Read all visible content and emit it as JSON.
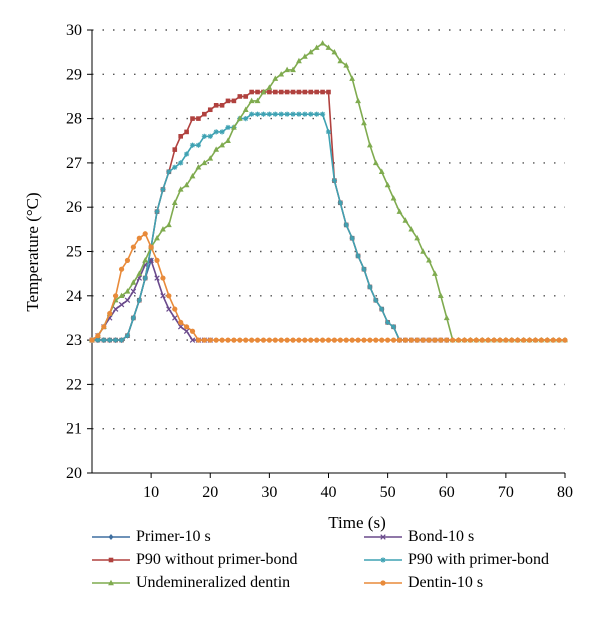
{
  "chart_data": {
    "type": "line",
    "title": "",
    "xlabel": "Time (s)",
    "ylabel": "Temperature (°C)",
    "xlim": [
      0,
      80
    ],
    "ylim": [
      20,
      30
    ],
    "xticks": [
      "10",
      "20",
      "30",
      "40",
      "50",
      "60",
      "70",
      "80"
    ],
    "yticks": [
      "20",
      "21",
      "22",
      "23",
      "24",
      "25",
      "26",
      "27",
      "28",
      "29",
      "30"
    ],
    "grid": "horizontal-dotted",
    "legend_position": "bottom",
    "series": [
      {
        "name": "Primer-10 s",
        "color": "#3f6fa0",
        "marker": "diamond",
        "points": [
          [
            0,
            23
          ],
          [
            1,
            23
          ],
          [
            2,
            23
          ],
          [
            3,
            23
          ],
          [
            4,
            23
          ],
          [
            5,
            23
          ],
          [
            6,
            23.1
          ],
          [
            7,
            23.5
          ],
          [
            8,
            23.9
          ],
          [
            9,
            24.4
          ],
          [
            10,
            24.8
          ]
        ]
      },
      {
        "name": "Bond-10 s",
        "color": "#6a4a8c",
        "marker": "x",
        "points": [
          [
            0,
            23
          ],
          [
            1,
            23.1
          ],
          [
            2,
            23.3
          ],
          [
            3,
            23.5
          ],
          [
            4,
            23.7
          ],
          [
            5,
            23.8
          ],
          [
            6,
            23.9
          ],
          [
            7,
            24.1
          ],
          [
            8,
            24.4
          ],
          [
            9,
            24.7
          ],
          [
            10,
            24.8
          ],
          [
            11,
            24.4
          ],
          [
            12,
            24
          ],
          [
            13,
            23.7
          ],
          [
            14,
            23.5
          ],
          [
            15,
            23.3
          ],
          [
            16,
            23.2
          ],
          [
            17,
            23
          ],
          [
            18,
            23
          ],
          [
            19,
            23
          ],
          [
            20,
            23
          ]
        ]
      },
      {
        "name": "P90 without primer-bond",
        "color": "#b0413e",
        "marker": "square",
        "points": [
          [
            0,
            23
          ],
          [
            1,
            23
          ],
          [
            2,
            23
          ],
          [
            3,
            23
          ],
          [
            4,
            23
          ],
          [
            5,
            23
          ],
          [
            6,
            23.1
          ],
          [
            7,
            23.5
          ],
          [
            8,
            23.9
          ],
          [
            9,
            24.4
          ],
          [
            10,
            25.1
          ],
          [
            11,
            25.9
          ],
          [
            12,
            26.4
          ],
          [
            13,
            26.8
          ],
          [
            14,
            27.3
          ],
          [
            15,
            27.6
          ],
          [
            16,
            27.7
          ],
          [
            17,
            28
          ],
          [
            18,
            28
          ],
          [
            19,
            28.1
          ],
          [
            20,
            28.2
          ],
          [
            21,
            28.3
          ],
          [
            22,
            28.3
          ],
          [
            23,
            28.4
          ],
          [
            24,
            28.4
          ],
          [
            25,
            28.5
          ],
          [
            26,
            28.5
          ],
          [
            27,
            28.6
          ],
          [
            28,
            28.6
          ],
          [
            29,
            28.6
          ],
          [
            30,
            28.6
          ],
          [
            31,
            28.6
          ],
          [
            32,
            28.6
          ],
          [
            33,
            28.6
          ],
          [
            34,
            28.6
          ],
          [
            35,
            28.6
          ],
          [
            36,
            28.6
          ],
          [
            37,
            28.6
          ],
          [
            38,
            28.6
          ],
          [
            39,
            28.6
          ],
          [
            40,
            28.6
          ],
          [
            41,
            26.6
          ],
          [
            42,
            26.1
          ],
          [
            43,
            25.6
          ],
          [
            44,
            25.3
          ],
          [
            45,
            24.9
          ],
          [
            46,
            24.6
          ],
          [
            47,
            24.2
          ],
          [
            48,
            23.9
          ],
          [
            49,
            23.7
          ],
          [
            50,
            23.4
          ],
          [
            51,
            23.3
          ],
          [
            52,
            23
          ],
          [
            53,
            23
          ],
          [
            54,
            23
          ],
          [
            55,
            23
          ],
          [
            56,
            23
          ],
          [
            57,
            23
          ],
          [
            58,
            23
          ],
          [
            59,
            23
          ],
          [
            60,
            23
          ]
        ]
      },
      {
        "name": "P90 with primer-bond",
        "color": "#3fa2b3",
        "marker": "star",
        "points": [
          [
            0,
            23
          ],
          [
            1,
            23
          ],
          [
            2,
            23
          ],
          [
            3,
            23
          ],
          [
            4,
            23
          ],
          [
            5,
            23
          ],
          [
            6,
            23.1
          ],
          [
            7,
            23.5
          ],
          [
            8,
            23.9
          ],
          [
            9,
            24.4
          ],
          [
            10,
            25.1
          ],
          [
            11,
            25.9
          ],
          [
            12,
            26.4
          ],
          [
            13,
            26.8
          ],
          [
            14,
            26.9
          ],
          [
            15,
            27
          ],
          [
            16,
            27.2
          ],
          [
            17,
            27.4
          ],
          [
            18,
            27.4
          ],
          [
            19,
            27.6
          ],
          [
            20,
            27.6
          ],
          [
            21,
            27.7
          ],
          [
            22,
            27.7
          ],
          [
            23,
            27.8
          ],
          [
            24,
            27.8
          ],
          [
            25,
            28
          ],
          [
            26,
            28
          ],
          [
            27,
            28.1
          ],
          [
            28,
            28.1
          ],
          [
            29,
            28.1
          ],
          [
            30,
            28.1
          ],
          [
            31,
            28.1
          ],
          [
            32,
            28.1
          ],
          [
            33,
            28.1
          ],
          [
            34,
            28.1
          ],
          [
            35,
            28.1
          ],
          [
            36,
            28.1
          ],
          [
            37,
            28.1
          ],
          [
            38,
            28.1
          ],
          [
            39,
            28.1
          ],
          [
            40,
            27.7
          ],
          [
            41,
            26.6
          ],
          [
            42,
            26.1
          ],
          [
            43,
            25.6
          ],
          [
            44,
            25.3
          ],
          [
            45,
            24.9
          ],
          [
            46,
            24.6
          ],
          [
            47,
            24.2
          ],
          [
            48,
            23.9
          ],
          [
            49,
            23.7
          ],
          [
            50,
            23.4
          ],
          [
            51,
            23.3
          ],
          [
            52,
            23
          ],
          [
            53,
            23
          ],
          [
            54,
            23
          ],
          [
            55,
            23
          ],
          [
            56,
            23
          ],
          [
            57,
            23
          ],
          [
            58,
            23
          ],
          [
            59,
            23
          ],
          [
            60,
            23
          ]
        ]
      },
      {
        "name": "Undemineralized dentin",
        "color": "#7fab4f",
        "marker": "triangle",
        "points": [
          [
            0,
            23
          ],
          [
            1,
            23.1
          ],
          [
            2,
            23.3
          ],
          [
            3,
            23.6
          ],
          [
            4,
            23.9
          ],
          [
            5,
            24
          ],
          [
            6,
            24.1
          ],
          [
            7,
            24.3
          ],
          [
            8,
            24.5
          ],
          [
            9,
            24.8
          ],
          [
            10,
            25.1
          ],
          [
            11,
            25.3
          ],
          [
            12,
            25.5
          ],
          [
            13,
            25.6
          ],
          [
            14,
            26.1
          ],
          [
            15,
            26.4
          ],
          [
            16,
            26.5
          ],
          [
            17,
            26.7
          ],
          [
            18,
            26.9
          ],
          [
            19,
            27
          ],
          [
            20,
            27.1
          ],
          [
            21,
            27.3
          ],
          [
            22,
            27.4
          ],
          [
            23,
            27.5
          ],
          [
            24,
            27.8
          ],
          [
            25,
            28
          ],
          [
            26,
            28.2
          ],
          [
            27,
            28.4
          ],
          [
            28,
            28.4
          ],
          [
            29,
            28.6
          ],
          [
            30,
            28.7
          ],
          [
            31,
            28.9
          ],
          [
            32,
            29
          ],
          [
            33,
            29.1
          ],
          [
            34,
            29.1
          ],
          [
            35,
            29.3
          ],
          [
            36,
            29.4
          ],
          [
            37,
            29.5
          ],
          [
            38,
            29.6
          ],
          [
            39,
            29.7
          ],
          [
            40,
            29.6
          ],
          [
            41,
            29.5
          ],
          [
            42,
            29.3
          ],
          [
            43,
            29.2
          ],
          [
            44,
            28.9
          ],
          [
            45,
            28.4
          ],
          [
            46,
            27.9
          ],
          [
            47,
            27.4
          ],
          [
            48,
            27
          ],
          [
            49,
            26.8
          ],
          [
            50,
            26.5
          ],
          [
            51,
            26.2
          ],
          [
            52,
            25.9
          ],
          [
            53,
            25.7
          ],
          [
            54,
            25.5
          ],
          [
            55,
            25.3
          ],
          [
            56,
            25
          ],
          [
            57,
            24.8
          ],
          [
            58,
            24.5
          ],
          [
            59,
            24
          ],
          [
            60,
            23.5
          ],
          [
            61,
            23
          ],
          [
            62,
            23
          ],
          [
            63,
            23
          ],
          [
            64,
            23
          ],
          [
            65,
            23
          ],
          [
            66,
            23
          ],
          [
            67,
            23
          ],
          [
            68,
            23
          ],
          [
            69,
            23
          ],
          [
            70,
            23
          ],
          [
            71,
            23
          ],
          [
            72,
            23
          ],
          [
            73,
            23
          ],
          [
            74,
            23
          ],
          [
            75,
            23
          ],
          [
            76,
            23
          ],
          [
            77,
            23
          ],
          [
            78,
            23
          ],
          [
            79,
            23
          ],
          [
            80,
            23
          ]
        ]
      },
      {
        "name": "Dentin-10 s",
        "color": "#e88a3a",
        "marker": "circle",
        "points": [
          [
            0,
            23
          ],
          [
            1,
            23.1
          ],
          [
            2,
            23.3
          ],
          [
            3,
            23.6
          ],
          [
            4,
            24
          ],
          [
            5,
            24.6
          ],
          [
            6,
            24.8
          ],
          [
            7,
            25.1
          ],
          [
            8,
            25.3
          ],
          [
            9,
            25.4
          ],
          [
            10,
            25.1
          ],
          [
            11,
            24.8
          ],
          [
            12,
            24.4
          ],
          [
            13,
            24
          ],
          [
            14,
            23.7
          ],
          [
            15,
            23.4
          ],
          [
            16,
            23.3
          ],
          [
            17,
            23.2
          ],
          [
            18,
            23
          ],
          [
            19,
            23
          ],
          [
            20,
            23
          ],
          [
            21,
            23
          ],
          [
            22,
            23
          ],
          [
            23,
            23
          ],
          [
            24,
            23
          ],
          [
            25,
            23
          ],
          [
            26,
            23
          ],
          [
            27,
            23
          ],
          [
            28,
            23
          ],
          [
            29,
            23
          ],
          [
            30,
            23
          ],
          [
            31,
            23
          ],
          [
            32,
            23
          ],
          [
            33,
            23
          ],
          [
            34,
            23
          ],
          [
            35,
            23
          ],
          [
            36,
            23
          ],
          [
            37,
            23
          ],
          [
            38,
            23
          ],
          [
            39,
            23
          ],
          [
            40,
            23
          ],
          [
            41,
            23
          ],
          [
            42,
            23
          ],
          [
            43,
            23
          ],
          [
            44,
            23
          ],
          [
            45,
            23
          ],
          [
            46,
            23
          ],
          [
            47,
            23
          ],
          [
            48,
            23
          ],
          [
            49,
            23
          ],
          [
            50,
            23
          ],
          [
            51,
            23
          ],
          [
            52,
            23
          ],
          [
            53,
            23
          ],
          [
            54,
            23
          ],
          [
            55,
            23
          ],
          [
            56,
            23
          ],
          [
            57,
            23
          ],
          [
            58,
            23
          ],
          [
            59,
            23
          ],
          [
            60,
            23
          ],
          [
            61,
            23
          ],
          [
            62,
            23
          ],
          [
            63,
            23
          ],
          [
            64,
            23
          ],
          [
            65,
            23
          ],
          [
            66,
            23
          ],
          [
            67,
            23
          ],
          [
            68,
            23
          ],
          [
            69,
            23
          ],
          [
            70,
            23
          ],
          [
            71,
            23
          ],
          [
            72,
            23
          ],
          [
            73,
            23
          ],
          [
            74,
            23
          ],
          [
            75,
            23
          ],
          [
            76,
            23
          ],
          [
            77,
            23
          ],
          [
            78,
            23
          ],
          [
            79,
            23
          ],
          [
            80,
            23
          ]
        ]
      }
    ]
  }
}
